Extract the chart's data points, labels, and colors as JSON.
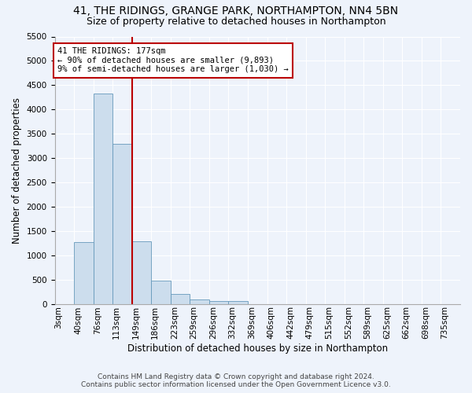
{
  "title_line1": "41, THE RIDINGS, GRANGE PARK, NORTHAMPTON, NN4 5BN",
  "title_line2": "Size of property relative to detached houses in Northampton",
  "xlabel": "Distribution of detached houses by size in Northampton",
  "ylabel": "Number of detached properties",
  "footer_line1": "Contains HM Land Registry data © Crown copyright and database right 2024.",
  "footer_line2": "Contains public sector information licensed under the Open Government Licence v3.0.",
  "annotation_line1": "41 THE RIDINGS: 177sqm",
  "annotation_line2": "← 90% of detached houses are smaller (9,893)",
  "annotation_line3": "9% of semi-detached houses are larger (1,030) →",
  "bar_categories": [
    "3sqm",
    "40sqm",
    "76sqm",
    "113sqm",
    "149sqm",
    "186sqm",
    "223sqm",
    "259sqm",
    "296sqm",
    "332sqm",
    "369sqm",
    "406sqm",
    "442sqm",
    "479sqm",
    "515sqm",
    "552sqm",
    "589sqm",
    "625sqm",
    "662sqm",
    "698sqm",
    "735sqm"
  ],
  "bar_values": [
    0,
    1270,
    4330,
    3300,
    1285,
    480,
    210,
    90,
    65,
    50,
    0,
    0,
    0,
    0,
    0,
    0,
    0,
    0,
    0,
    0,
    0
  ],
  "vline_after_bin": 4,
  "bar_color": "#ccdded",
  "bar_edge_color": "#6699bb",
  "vline_color": "#bb0000",
  "ylim": [
    0,
    5500
  ],
  "yticks": [
    0,
    500,
    1000,
    1500,
    2000,
    2500,
    3000,
    3500,
    4000,
    4500,
    5000,
    5500
  ],
  "background_color": "#eef3fb",
  "plot_bg_color": "#eef3fb",
  "grid_color": "#ffffff",
  "annotation_box_facecolor": "#ffffff",
  "annotation_box_edgecolor": "#bb0000",
  "title_fontsize": 10,
  "subtitle_fontsize": 9,
  "axis_label_fontsize": 8.5,
  "tick_fontsize": 7.5,
  "annotation_fontsize": 7.5,
  "footer_fontsize": 6.5
}
